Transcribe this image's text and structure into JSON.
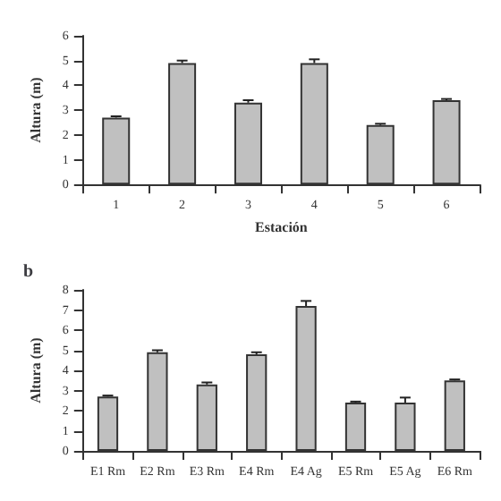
{
  "chart_data": [
    {
      "type": "bar",
      "xlabel": "Estación",
      "ylabel": "Altura (m)",
      "categories": [
        "1",
        "2",
        "3",
        "4",
        "5",
        "6"
      ],
      "series": [
        {
          "color": "#c0c0c0",
          "values": [
            2.7,
            4.9,
            3.3,
            4.9,
            2.4,
            3.4
          ],
          "errors": [
            0.05,
            0.1,
            0.1,
            0.15,
            0.05,
            0.05
          ]
        }
      ],
      "ylim": [
        0,
        6
      ],
      "yticks": [
        0,
        1,
        2,
        3,
        4,
        5,
        6
      ]
    },
    {
      "type": "bar",
      "title": "b",
      "ylabel": "Altura (m)",
      "categories": [
        "E1 Rm",
        "E2 Rm",
        "E3 Rm",
        "E4 Rm",
        "E4 Ag",
        "E5 Rm",
        "E5 Ag",
        "E6 Rm"
      ],
      "series": [
        {
          "color": "#c0c0c0",
          "values": [
            2.7,
            4.9,
            3.3,
            4.8,
            7.2,
            2.4,
            2.4,
            3.5
          ],
          "errors": [
            0.05,
            0.1,
            0.1,
            0.1,
            0.25,
            0.05,
            0.25,
            0.05
          ]
        }
      ],
      "ylim": [
        0,
        8
      ],
      "yticks": [
        0,
        1,
        2,
        3,
        4,
        5,
        6,
        7,
        8
      ]
    }
  ]
}
